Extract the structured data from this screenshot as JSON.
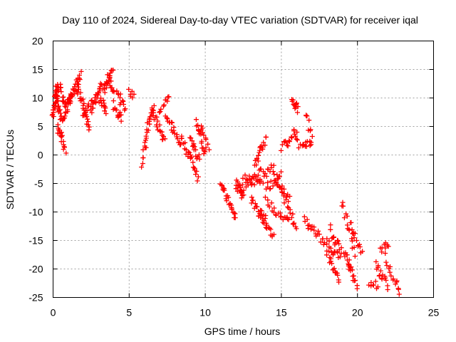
{
  "chart_data": {
    "type": "scatter",
    "title": "Day 110 of 2024, Sidereal Day-to-day VTEC variation (SDTVAR) for receiver iqal",
    "xlabel": "GPS time / hours",
    "ylabel": "SDTVAR / TECUs",
    "xlim": [
      0,
      25
    ],
    "ylim": [
      -25,
      20
    ],
    "xticks": [
      0,
      5,
      10,
      15,
      20,
      25
    ],
    "yticks": [
      -25,
      -20,
      -15,
      -10,
      -5,
      0,
      5,
      10,
      15,
      20
    ],
    "grid": true,
    "marker": "+",
    "color": "#ff0000",
    "segments": [
      {
        "x0": 0.0,
        "x1": 0.3,
        "y0": 7.0,
        "y1": 12.0,
        "n": 25
      },
      {
        "x0": 0.2,
        "x1": 0.5,
        "y0": 12.0,
        "y1": 6.0,
        "n": 20
      },
      {
        "x0": 0.3,
        "x1": 0.8,
        "y0": 5.0,
        "y1": 1.0,
        "n": 18
      },
      {
        "x0": 0.4,
        "x1": 0.9,
        "y0": 12.0,
        "y1": 8.0,
        "n": 15
      },
      {
        "x0": 0.6,
        "x1": 1.2,
        "y0": 6.0,
        "y1": 10.0,
        "n": 18
      },
      {
        "x0": 1.0,
        "x1": 1.8,
        "y0": 9.0,
        "y1": 14.0,
        "n": 28
      },
      {
        "x0": 1.6,
        "x1": 2.2,
        "y0": 12.0,
        "y1": 7.0,
        "n": 20
      },
      {
        "x0": 2.0,
        "x1": 2.5,
        "y0": 7.0,
        "y1": 9.0,
        "n": 12
      },
      {
        "x0": 2.2,
        "x1": 2.4,
        "y0": 6.0,
        "y1": 4.5,
        "n": 6
      },
      {
        "x0": 2.5,
        "x1": 3.2,
        "y0": 8.0,
        "y1": 12.0,
        "n": 22
      },
      {
        "x0": 3.0,
        "x1": 3.5,
        "y0": 10.0,
        "y1": 8.0,
        "n": 14
      },
      {
        "x0": 3.3,
        "x1": 3.9,
        "y0": 11.0,
        "y1": 15.0,
        "n": 18
      },
      {
        "x0": 3.6,
        "x1": 4.0,
        "y0": 14.0,
        "y1": 10.0,
        "n": 12
      },
      {
        "x0": 4.0,
        "x1": 4.5,
        "y0": 8.0,
        "y1": 6.5,
        "n": 14
      },
      {
        "x0": 4.2,
        "x1": 4.7,
        "y0": 11.0,
        "y1": 8.0,
        "n": 12
      },
      {
        "x0": 5.0,
        "x1": 5.3,
        "y0": 11.0,
        "y1": 10.0,
        "n": 6
      },
      {
        "x0": 5.8,
        "x1": 6.1,
        "y0": -1.5,
        "y1": 2.0,
        "n": 8
      },
      {
        "x0": 6.0,
        "x1": 6.6,
        "y0": 2.0,
        "y1": 9.0,
        "n": 18
      },
      {
        "x0": 6.5,
        "x1": 7.3,
        "y0": 8.0,
        "y1": 2.5,
        "n": 20
      },
      {
        "x0": 7.0,
        "x1": 7.6,
        "y0": 7.0,
        "y1": 11.0,
        "n": 10
      },
      {
        "x0": 7.4,
        "x1": 8.4,
        "y0": 7.0,
        "y1": 2.0,
        "n": 20
      },
      {
        "x0": 8.4,
        "x1": 8.9,
        "y0": 3.0,
        "y1": 0.0,
        "n": 10
      },
      {
        "x0": 8.9,
        "x1": 9.5,
        "y0": 1.0,
        "y1": -4.5,
        "n": 15
      },
      {
        "x0": 9.0,
        "x1": 9.6,
        "y0": 3.0,
        "y1": -1.0,
        "n": 14
      },
      {
        "x0": 9.4,
        "x1": 10.0,
        "y0": 5.5,
        "y1": 0.5,
        "n": 15
      },
      {
        "x0": 9.7,
        "x1": 10.2,
        "y0": 5.0,
        "y1": 1.0,
        "n": 10
      },
      {
        "x0": 11.0,
        "x1": 12.0,
        "y0": -5.0,
        "y1": -11.0,
        "n": 25
      },
      {
        "x0": 12.0,
        "x1": 12.5,
        "y0": -5.0,
        "y1": -7.0,
        "n": 18
      },
      {
        "x0": 12.3,
        "x1": 13.5,
        "y0": -6.0,
        "y1": -4.0,
        "n": 20
      },
      {
        "x0": 12.5,
        "x1": 13.8,
        "y0": -4.0,
        "y1": -3.0,
        "n": 15
      },
      {
        "x0": 13.0,
        "x1": 14.0,
        "y0": -7.5,
        "y1": -11.5,
        "n": 18
      },
      {
        "x0": 13.2,
        "x1": 14.0,
        "y0": -2.0,
        "y1": 3.0,
        "n": 18
      },
      {
        "x0": 13.5,
        "x1": 14.5,
        "y0": -5.0,
        "y1": -2.0,
        "n": 15
      },
      {
        "x0": 13.5,
        "x1": 14.5,
        "y0": -10.0,
        "y1": -14.5,
        "n": 18
      },
      {
        "x0": 14.0,
        "x1": 15.0,
        "y0": -6.0,
        "y1": -3.0,
        "n": 15
      },
      {
        "x0": 14.0,
        "x1": 15.5,
        "y0": -8.0,
        "y1": -12.0,
        "n": 20
      },
      {
        "x0": 14.5,
        "x1": 15.5,
        "y0": -4.0,
        "y1": -8.0,
        "n": 15
      },
      {
        "x0": 15.0,
        "x1": 16.0,
        "y0": -6.0,
        "y1": -13.0,
        "n": 18
      },
      {
        "x0": 15.0,
        "x1": 15.7,
        "y0": 1.5,
        "y1": 2.5,
        "n": 12
      },
      {
        "x0": 15.7,
        "x1": 16.1,
        "y0": 9.5,
        "y1": 8.0,
        "n": 12
      },
      {
        "x0": 15.8,
        "x1": 16.1,
        "y0": 5.0,
        "y1": 2.0,
        "n": 8
      },
      {
        "x0": 16.3,
        "x1": 17.0,
        "y0": 2.5,
        "y1": 1.5,
        "n": 12
      },
      {
        "x0": 16.6,
        "x1": 17.0,
        "y0": 7.5,
        "y1": 3.0,
        "n": 8
      },
      {
        "x0": 16.5,
        "x1": 18.5,
        "y0": -11.5,
        "y1": -17.0,
        "n": 30
      },
      {
        "x0": 18.0,
        "x1": 18.8,
        "y0": -17.0,
        "y1": -22.0,
        "n": 18
      },
      {
        "x0": 18.2,
        "x1": 18.8,
        "y0": -13.0,
        "y1": -18.0,
        "n": 12
      },
      {
        "x0": 18.5,
        "x1": 19.5,
        "y0": -15.0,
        "y1": -19.0,
        "n": 15
      },
      {
        "x0": 19.0,
        "x1": 19.8,
        "y0": -8.5,
        "y1": -17.0,
        "n": 15
      },
      {
        "x0": 19.3,
        "x1": 20.0,
        "y0": -18.0,
        "y1": -23.0,
        "n": 15
      },
      {
        "x0": 19.5,
        "x1": 20.3,
        "y0": -12.0,
        "y1": -17.0,
        "n": 15
      },
      {
        "x0": 20.8,
        "x1": 21.3,
        "y0": -22.5,
        "y1": -23.0,
        "n": 8
      },
      {
        "x0": 21.2,
        "x1": 22.0,
        "y0": -19.5,
        "y1": -23.0,
        "n": 15
      },
      {
        "x0": 21.5,
        "x1": 22.0,
        "y0": -16.5,
        "y1": -15.5,
        "n": 8
      },
      {
        "x0": 21.8,
        "x1": 22.8,
        "y0": -18.0,
        "y1": -24.0,
        "n": 15
      }
    ]
  }
}
